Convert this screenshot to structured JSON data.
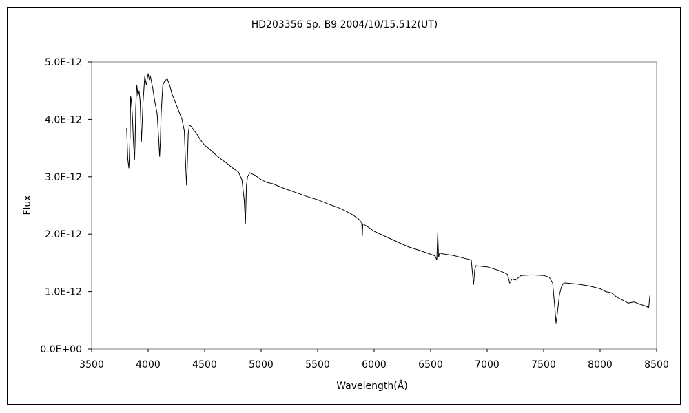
{
  "chart_data": {
    "type": "line",
    "title": "HD203356    Sp. B9    2004/10/15.512(UT)",
    "xlabel": "Wavelength(Å)",
    "ylabel": "Flux",
    "xlim": [
      3500,
      8500
    ],
    "ylim": [
      0,
      5e-12
    ],
    "x_ticks": [
      3500,
      4000,
      4500,
      5000,
      5500,
      6000,
      6500,
      7000,
      7500,
      8000,
      8500
    ],
    "x_tick_labels": [
      "3500",
      "4000",
      "4500",
      "5000",
      "5500",
      "6000",
      "6500",
      "7000",
      "7500",
      "8000",
      "8500"
    ],
    "y_ticks": [
      0,
      1e-12,
      2e-12,
      3e-12,
      4e-12,
      5e-12
    ],
    "y_tick_labels": [
      "0.0E+00",
      "1.0E-12",
      "2.0E-12",
      "3.0E-12",
      "4.0E-12",
      "5.0E-12"
    ],
    "grid": false,
    "legend": "none",
    "line_color": "#000000",
    "series": [
      {
        "x": [
          3810,
          3820,
          3830,
          3840,
          3845,
          3850,
          3860,
          3870,
          3880,
          3885,
          3890,
          3900,
          3910,
          3920,
          3930,
          3940,
          3955,
          3965,
          3970,
          3975,
          3985,
          4000,
          4010,
          4020,
          4030,
          4040,
          4060,
          4080,
          4095,
          4102,
          4108,
          4115,
          4130,
          4150,
          4170,
          4190,
          4210,
          4240,
          4270,
          4300,
          4320,
          4330,
          4340,
          4348,
          4355,
          4365,
          4380,
          4400,
          4430,
          4460,
          4500,
          4550,
          4600,
          4650,
          4700,
          4750,
          4800,
          4830,
          4850,
          4858,
          4861,
          4864,
          4870,
          4880,
          4900,
          4950,
          5000,
          5050,
          5100,
          5150,
          5200,
          5300,
          5400,
          5500,
          5600,
          5700,
          5800,
          5860,
          5890,
          5896,
          5900,
          5950,
          6000,
          6100,
          6200,
          6280,
          6300,
          6400,
          6500,
          6540,
          6555,
          6563,
          6570,
          6580,
          6600,
          6700,
          6800,
          6860,
          6870,
          6880,
          6890,
          6900,
          7000,
          7100,
          7150,
          7180,
          7200,
          7220,
          7250,
          7300,
          7400,
          7500,
          7550,
          7580,
          7600,
          7610,
          7620,
          7640,
          7660,
          7680,
          7700,
          7800,
          7900,
          8000,
          8050,
          8100,
          8150,
          8200,
          8250,
          8300,
          8350,
          8400,
          8430,
          8440
        ],
        "y": [
          3.85e-12,
          3.3e-12,
          3.15e-12,
          3.7e-12,
          4.4e-12,
          4.35e-12,
          4.1e-12,
          3.6e-12,
          3.3e-12,
          3.6e-12,
          4.2e-12,
          4.6e-12,
          4.4e-12,
          4.5e-12,
          4.3e-12,
          3.6e-12,
          4.3e-12,
          4.6e-12,
          4.75e-12,
          4.7e-12,
          4.6e-12,
          4.8e-12,
          4.7e-12,
          4.75e-12,
          4.65e-12,
          4.55e-12,
          4.3e-12,
          4.1e-12,
          3.6e-12,
          3.35e-12,
          3.6e-12,
          4.1e-12,
          4.6e-12,
          4.68e-12,
          4.7e-12,
          4.6e-12,
          4.45e-12,
          4.3e-12,
          4.15e-12,
          4e-12,
          3.8e-12,
          3.3e-12,
          2.85e-12,
          3.3e-12,
          3.75e-12,
          3.9e-12,
          3.88e-12,
          3.82e-12,
          3.75e-12,
          3.65e-12,
          3.55e-12,
          3.47e-12,
          3.38e-12,
          3.3e-12,
          3.23e-12,
          3.15e-12,
          3.08e-12,
          2.95e-12,
          2.6e-12,
          2.3e-12,
          2.18e-12,
          2.4e-12,
          2.85e-12,
          3e-12,
          3.07e-12,
          3.02e-12,
          2.95e-12,
          2.9e-12,
          2.88e-12,
          2.84e-12,
          2.8e-12,
          2.73e-12,
          2.66e-12,
          2.6e-12,
          2.52e-12,
          2.45e-12,
          2.35e-12,
          2.27e-12,
          2.2e-12,
          1.97e-12,
          2.18e-12,
          2.12e-12,
          2.05e-12,
          1.96e-12,
          1.87e-12,
          1.8e-12,
          1.78e-12,
          1.72e-12,
          1.65e-12,
          1.62e-12,
          1.55e-12,
          2.03e-12,
          1.6e-12,
          1.67e-12,
          1.66e-12,
          1.63e-12,
          1.58e-12,
          1.55e-12,
          1.32e-12,
          1.12e-12,
          1.38e-12,
          1.45e-12,
          1.43e-12,
          1.37e-12,
          1.33e-12,
          1.3e-12,
          1.15e-12,
          1.22e-12,
          1.2e-12,
          1.28e-12,
          1.29e-12,
          1.28e-12,
          1.25e-12,
          1.15e-12,
          7e-13,
          4.5e-13,
          6e-13,
          9.5e-13,
          1.1e-12,
          1.15e-12,
          1.15e-12,
          1.13e-12,
          1.1e-12,
          1.05e-12,
          1e-12,
          9.8e-13,
          9e-13,
          8.5e-13,
          8e-13,
          8.2e-13,
          7.8e-13,
          7.5e-13,
          7.2e-13,
          9.3e-13
        ]
      }
    ]
  }
}
